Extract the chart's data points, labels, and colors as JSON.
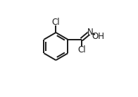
{
  "background": "#ffffff",
  "bond_color": "#1a1a1a",
  "text_color": "#1a1a1a",
  "bond_width": 1.4,
  "font_size": 8.5,
  "figsize": [
    1.96,
    1.37
  ],
  "dpi": 100,
  "xlim": [
    0.0,
    1.0
  ],
  "ylim": [
    0.0,
    1.0
  ]
}
